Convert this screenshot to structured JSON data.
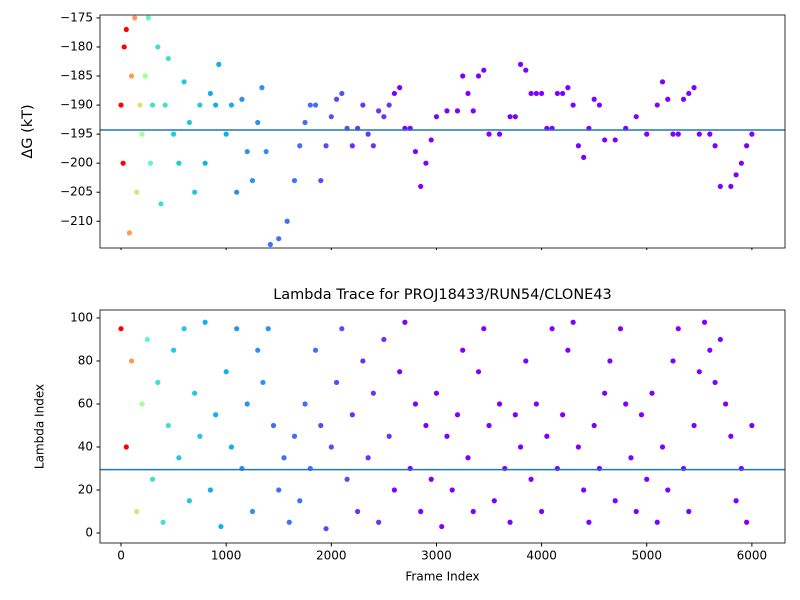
{
  "chart_data": [
    {
      "type": "scatter",
      "ylabel": "ΔG (kT)",
      "xlim": [
        -200,
        6315
      ],
      "xticks": [
        0,
        1000,
        2000,
        3000,
        4000,
        5000,
        6000
      ],
      "ylim": [
        -214.6,
        -174.5
      ],
      "yticks": [
        {
          "value": -210,
          "label": "−210"
        },
        {
          "value": -205,
          "label": "−205"
        },
        {
          "value": -200,
          "label": "−200"
        },
        {
          "value": -195,
          "label": "−195"
        },
        {
          "value": -190,
          "label": "−190"
        },
        {
          "value": -185,
          "label": "−185"
        },
        {
          "value": -180,
          "label": "−180"
        },
        {
          "value": -175,
          "label": "−175"
        }
      ],
      "hline": {
        "value": -194.3,
        "color": "#1f77b4"
      },
      "series": [
        {
          "color": "#ff0000",
          "x": [
            0,
            20,
            30,
            50
          ],
          "values": [
            -190,
            -200,
            -180,
            -177
          ]
        },
        {
          "color": "#ff9a50",
          "x": [
            80,
            100,
            130
          ],
          "values": [
            -212,
            -185,
            -175
          ]
        },
        {
          "color": "#e0e070",
          "x": [
            150,
            180
          ],
          "values": [
            -205,
            -190
          ]
        },
        {
          "color": "#a0ff90",
          "x": [
            200,
            230
          ],
          "values": [
            -195,
            -185
          ]
        },
        {
          "color": "#60f8c0",
          "x": [
            260,
            280
          ],
          "values": [
            -175,
            -200
          ]
        },
        {
          "color": "#40e0d0",
          "x": [
            300,
            350,
            380,
            420,
            450
          ],
          "values": [
            -190,
            -180,
            -207,
            -190,
            -182
          ]
        },
        {
          "color": "#20c8e0",
          "x": [
            500,
            550,
            600,
            650,
            700,
            750
          ],
          "values": [
            -195,
            -200,
            -186,
            -193,
            -205,
            -190
          ]
        },
        {
          "color": "#10b0e8",
          "x": [
            800,
            850,
            900,
            930,
            1000,
            1050
          ],
          "values": [
            -200,
            -188,
            -190,
            -183,
            -195,
            -190
          ]
        },
        {
          "color": "#3090f0",
          "x": [
            1100,
            1150,
            1200,
            1250,
            1300,
            1340,
            1380
          ],
          "values": [
            -205,
            -189,
            -198,
            -203,
            -193,
            -187,
            -198
          ]
        },
        {
          "color": "#4070f8",
          "x": [
            1420,
            1500,
            1580,
            1650,
            1700,
            1750,
            1800,
            1850
          ],
          "values": [
            -214,
            -213,
            -210,
            -203,
            -197,
            -193,
            -190,
            -190
          ]
        },
        {
          "color": "#5050fa",
          "x": [
            1900,
            1950,
            2000,
            2050,
            2100,
            2150
          ],
          "values": [
            -203,
            -197,
            -192,
            -189,
            -188,
            -194
          ]
        },
        {
          "color": "#6a30fc",
          "x": [
            2200,
            2250,
            2300,
            2350,
            2400,
            2450,
            2500,
            2550
          ],
          "values": [
            -197,
            -194,
            -190,
            -195,
            -197,
            -191,
            -192,
            -190
          ]
        },
        {
          "color": "#8000ff",
          "x": [
            2600,
            2650,
            2700,
            2750,
            2800,
            2850,
            2900,
            2950,
            3000,
            3100,
            3200,
            3250,
            3300,
            3350,
            3400,
            3450,
            3500,
            3600,
            3700,
            3750,
            3800,
            3850,
            3900,
            3950,
            4000,
            4050,
            4100,
            4150,
            4200,
            4250,
            4300,
            4350,
            4400,
            4450,
            4500,
            4550,
            4600,
            4700,
            4800,
            4900,
            5000,
            5100,
            5150,
            5200,
            5250,
            5300,
            5350,
            5400,
            5450,
            5500,
            5600,
            5650,
            5700,
            5800,
            5850,
            5900,
            5950,
            6000
          ],
          "values": [
            -188,
            -187,
            -194,
            -194,
            -198,
            -204,
            -200,
            -196,
            -192,
            -191,
            -191,
            -185,
            -188,
            -191,
            -185,
            -184,
            -195,
            -195,
            -192,
            -192,
            -183,
            -184,
            -188,
            -188,
            -188,
            -194,
            -194,
            -188,
            -188,
            -187,
            -190,
            -197,
            -199,
            -194,
            -189,
            -190,
            -196,
            -196,
            -194,
            -192,
            -195,
            -190,
            -186,
            -189,
            -195,
            -195,
            -189,
            -188,
            -187,
            -195,
            -195,
            -197,
            -204,
            -204,
            -202,
            -200,
            -197,
            -195
          ]
        }
      ]
    },
    {
      "type": "scatter",
      "title": "Lambda Trace for PROJ18433/RUN54/CLONE43",
      "xlabel": "Frame Index",
      "ylabel": "Lambda Index",
      "xlim": [
        -200,
        6315
      ],
      "xticks": [
        0,
        1000,
        2000,
        3000,
        4000,
        5000,
        6000
      ],
      "ylim": [
        -4.65,
        103.7
      ],
      "yticks": [
        0,
        20,
        40,
        60,
        80,
        100
      ],
      "hline": {
        "value": 29.5,
        "color": "#1f77b4"
      },
      "series": [
        {
          "color": "#ff0000",
          "x": [
            0,
            50
          ],
          "values": [
            95,
            40
          ]
        },
        {
          "color": "#ff9a50",
          "x": [
            100
          ],
          "values": [
            80
          ]
        },
        {
          "color": "#e0e070",
          "x": [
            150
          ],
          "values": [
            10
          ]
        },
        {
          "color": "#a0ff90",
          "x": [
            200
          ],
          "values": [
            60
          ]
        },
        {
          "color": "#60f8c0",
          "x": [
            250
          ],
          "values": [
            90
          ]
        },
        {
          "color": "#40e0d0",
          "x": [
            300,
            350,
            400,
            450
          ],
          "values": [
            25,
            70,
            5,
            50
          ]
        },
        {
          "color": "#20c8e0",
          "x": [
            500,
            550,
            600,
            650,
            700,
            750
          ],
          "values": [
            85,
            35,
            95,
            15,
            65,
            45
          ]
        },
        {
          "color": "#10b0e8",
          "x": [
            800,
            850,
            900,
            950,
            1000,
            1050
          ],
          "values": [
            98,
            20,
            55,
            3,
            75,
            40
          ]
        },
        {
          "color": "#3090f0",
          "x": [
            1100,
            1150,
            1200,
            1250,
            1300,
            1350,
            1400
          ],
          "values": [
            95,
            30,
            60,
            10,
            85,
            70,
            95
          ]
        },
        {
          "color": "#4070f8",
          "x": [
            1450,
            1500,
            1550,
            1600,
            1650,
            1700,
            1750,
            1800,
            1850
          ],
          "values": [
            50,
            20,
            35,
            5,
            45,
            15,
            60,
            30,
            85
          ]
        },
        {
          "color": "#5050fa",
          "x": [
            1900,
            1950,
            2000,
            2050,
            2100,
            2150
          ],
          "values": [
            50,
            2,
            40,
            70,
            95,
            25
          ]
        },
        {
          "color": "#6a30fc",
          "x": [
            2200,
            2250,
            2300,
            2350,
            2400,
            2450,
            2500,
            2550
          ],
          "values": [
            55,
            10,
            80,
            35,
            65,
            5,
            90,
            45
          ]
        },
        {
          "color": "#8000ff",
          "x": [
            2600,
            2650,
            2700,
            2750,
            2800,
            2850,
            2900,
            2950,
            3000,
            3050,
            3100,
            3150,
            3200,
            3250,
            3300,
            3350,
            3400,
            3450,
            3500,
            3550,
            3600,
            3650,
            3700,
            3750,
            3800,
            3850,
            3900,
            3950,
            4000,
            4050,
            4100,
            4150,
            4200,
            4250,
            4300,
            4350,
            4400,
            4450,
            4500,
            4550,
            4600,
            4650,
            4700,
            4750,
            4800,
            4850,
            4900,
            4950,
            5000,
            5050,
            5100,
            5150,
            5200,
            5250,
            5300,
            5350,
            5400,
            5450,
            5500,
            5550,
            5600,
            5650,
            5700,
            5750,
            5800,
            5850,
            5900,
            5950,
            6000
          ],
          "values": [
            20,
            75,
            98,
            30,
            60,
            10,
            50,
            25,
            65,
            3,
            45,
            20,
            55,
            85,
            35,
            10,
            75,
            95,
            50,
            15,
            60,
            30,
            5,
            55,
            40,
            80,
            25,
            60,
            10,
            45,
            95,
            30,
            55,
            85,
            98,
            40,
            20,
            5,
            50,
            30,
            65,
            80,
            15,
            95,
            60,
            35,
            10,
            55,
            25,
            65,
            5,
            40,
            20,
            80,
            95,
            30,
            10,
            50,
            75,
            98,
            85,
            70,
            90,
            60,
            45,
            15,
            30,
            5,
            50
          ]
        }
      ]
    }
  ]
}
